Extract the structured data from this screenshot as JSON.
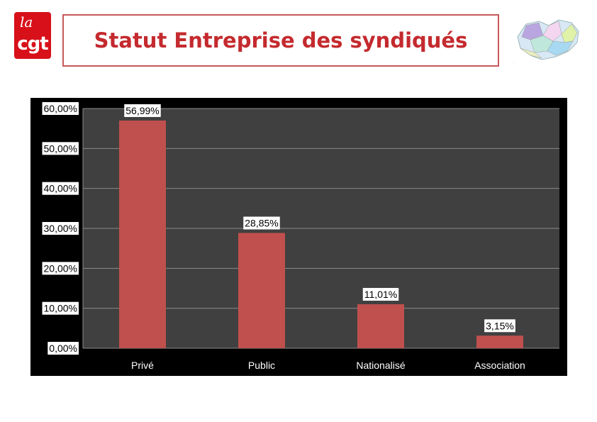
{
  "header": {
    "title": "Statut Entreprise des syndiqués",
    "logo_top": "la",
    "logo_main": "cgt"
  },
  "colors": {
    "accent": "#c42a2e",
    "bar": "#c0504d",
    "plot_bg": "#404040",
    "frame": "#000000"
  },
  "chart_data": {
    "type": "bar",
    "title": "Statut Entreprise des syndiqués",
    "categories": [
      "Privé",
      "Public",
      "Nationalisé",
      "Association"
    ],
    "values": [
      56.99,
      28.85,
      11.01,
      3.15
    ],
    "data_labels": [
      "56,99%",
      "28,85%",
      "11,01%",
      "3,15%"
    ],
    "yticks": [
      0,
      10,
      20,
      30,
      40,
      50,
      60
    ],
    "ytick_labels": [
      "0,00%",
      "10,00%",
      "20,00%",
      "30,00%",
      "40,00%",
      "50,00%",
      "60,00%"
    ],
    "ylim": [
      0,
      60
    ],
    "xlabel": "",
    "ylabel": "",
    "grid": true
  }
}
